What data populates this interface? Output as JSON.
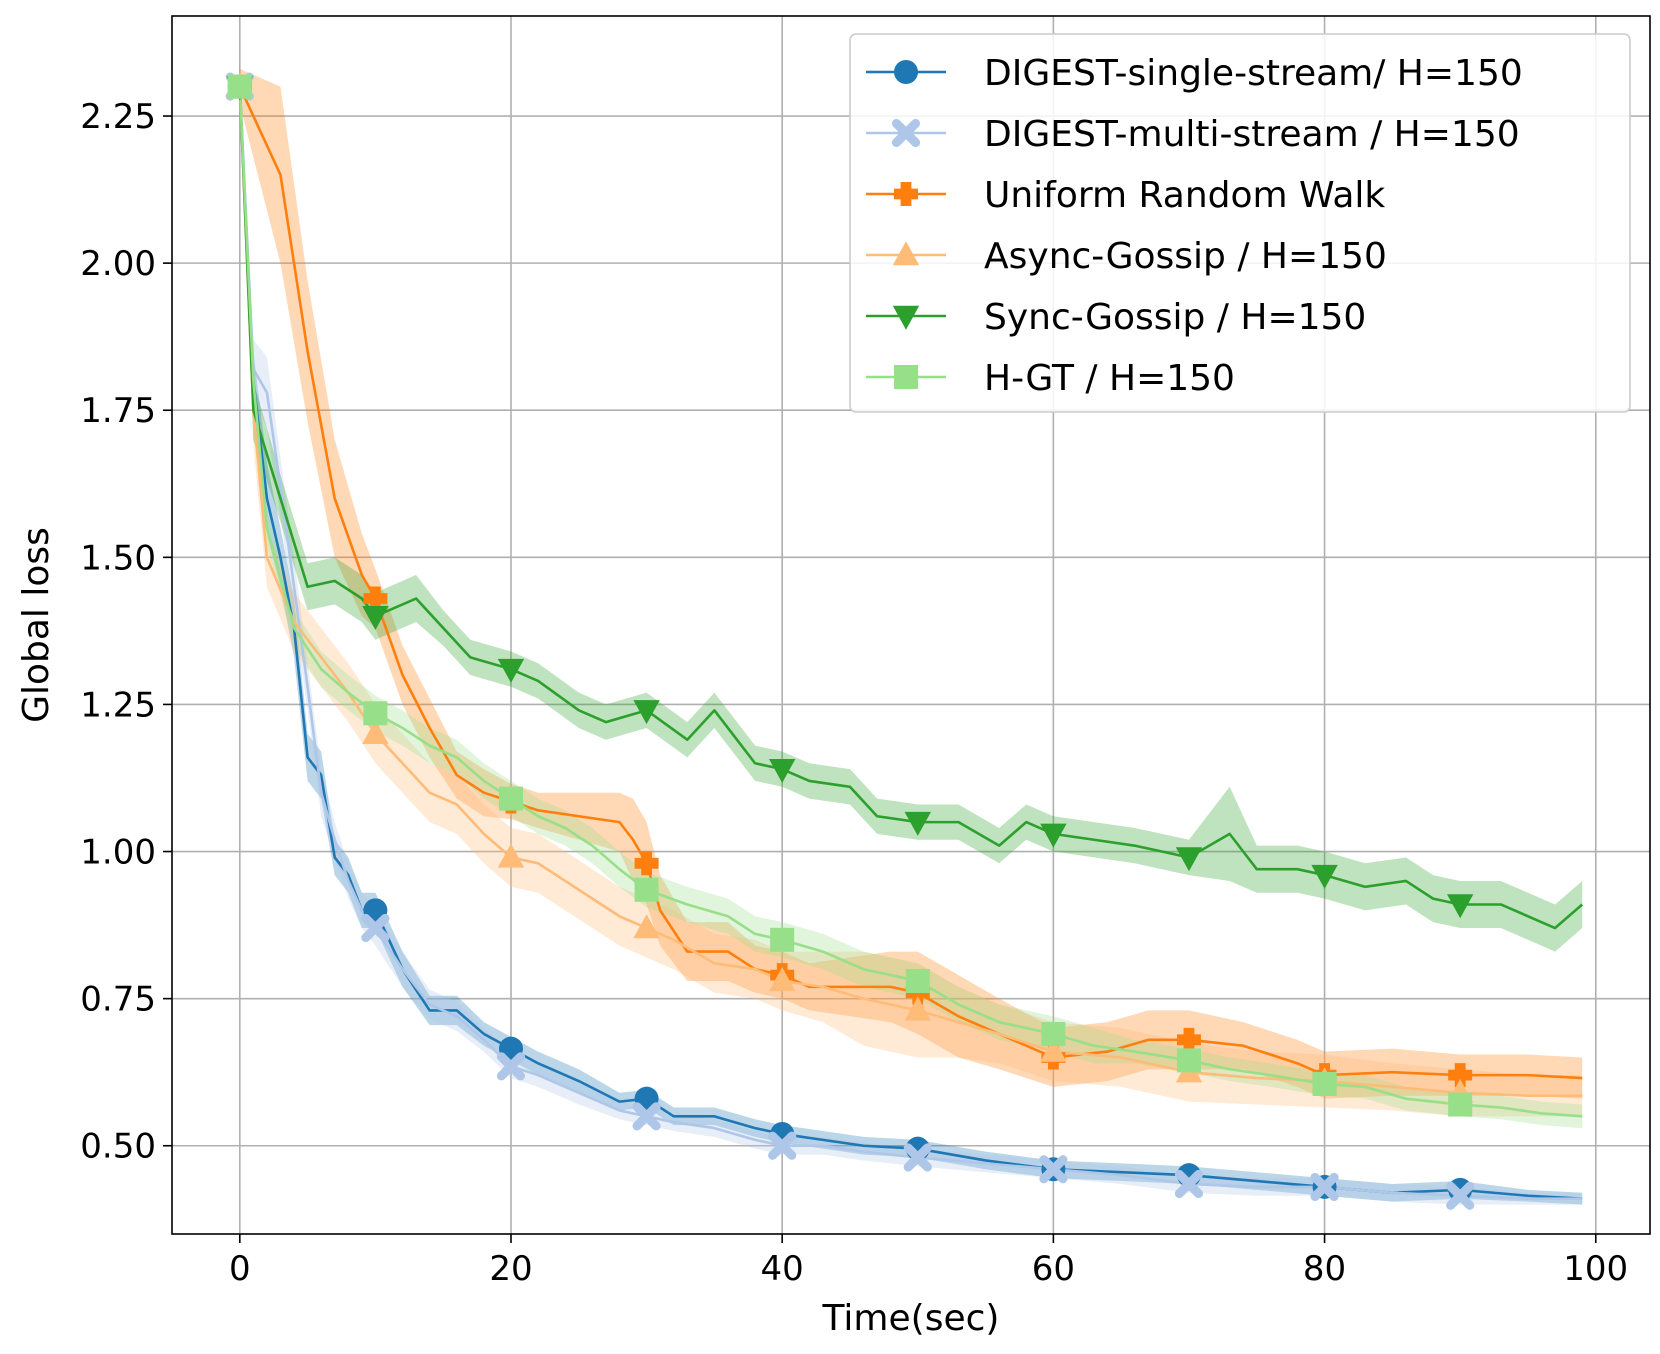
{
  "chart_data": {
    "type": "line",
    "xlabel": "Time(sec)",
    "ylabel": "Global loss",
    "xlim": [
      -5,
      104
    ],
    "ylim": [
      0.35,
      2.42
    ],
    "xticks": [
      0,
      20,
      40,
      60,
      80,
      100
    ],
    "yticks": [
      0.5,
      0.75,
      1.0,
      1.25,
      1.5,
      1.75,
      2.0,
      2.25
    ],
    "xtick_labels": [
      "0",
      "20",
      "40",
      "60",
      "80",
      "100"
    ],
    "ytick_labels": [
      "0.50",
      "0.75",
      "1.00",
      "1.25",
      "1.50",
      "1.75",
      "2.00",
      "2.25"
    ],
    "grid": true,
    "legend_position": "top-right",
    "shaded_band": "min-max band around each line",
    "series": [
      {
        "name": "DIGEST-single-stream/ H=150",
        "color": "#1f77b4",
        "marker": "circle",
        "x": [
          0,
          1,
          2,
          3,
          4,
          5,
          6,
          7,
          8,
          9,
          10,
          12,
          14,
          16,
          18,
          20,
          22,
          25,
          28,
          30,
          32,
          35,
          38,
          40,
          43,
          46,
          50,
          55,
          60,
          65,
          70,
          75,
          80,
          85,
          90,
          95,
          99
        ],
        "y": [
          2.3,
          1.8,
          1.6,
          1.5,
          1.38,
          1.16,
          1.13,
          0.99,
          0.96,
          0.9,
          0.9,
          0.8,
          0.73,
          0.73,
          0.69,
          0.665,
          0.64,
          0.61,
          0.575,
          0.58,
          0.55,
          0.55,
          0.53,
          0.52,
          0.51,
          0.5,
          0.495,
          0.475,
          0.46,
          0.455,
          0.45,
          0.44,
          0.43,
          0.42,
          0.425,
          0.415,
          0.41
        ],
        "band": [
          0.03,
          0.05,
          0.06,
          0.05,
          0.05,
          0.04,
          0.04,
          0.03,
          0.03,
          0.03,
          0.03,
          0.03,
          0.025,
          0.025,
          0.02,
          0.02,
          0.02,
          0.02,
          0.015,
          0.015,
          0.015,
          0.015,
          0.015,
          0.015,
          0.015,
          0.015,
          0.015,
          0.015,
          0.015,
          0.015,
          0.015,
          0.015,
          0.015,
          0.015,
          0.015,
          0.01,
          0.01
        ]
      },
      {
        "name": "DIGEST-multi-stream / H=150",
        "color": "#aec7e8",
        "marker": "x",
        "x": [
          0,
          1,
          2,
          3,
          4,
          5,
          6,
          7,
          8,
          9,
          10,
          12,
          14,
          16,
          18,
          20,
          22,
          25,
          28,
          30,
          32,
          35,
          38,
          40,
          43,
          46,
          50,
          55,
          60,
          65,
          70,
          75,
          80,
          85,
          90,
          95,
          99
        ],
        "y": [
          2.3,
          1.82,
          1.78,
          1.62,
          1.45,
          1.28,
          1.1,
          1.02,
          0.95,
          0.9,
          0.87,
          0.8,
          0.74,
          0.72,
          0.68,
          0.635,
          0.62,
          0.59,
          0.56,
          0.55,
          0.54,
          0.53,
          0.51,
          0.5,
          0.5,
          0.49,
          0.48,
          0.47,
          0.46,
          0.45,
          0.435,
          0.43,
          0.43,
          0.42,
          0.415,
          0.41,
          0.41
        ],
        "band": [
          0.03,
          0.05,
          0.06,
          0.05,
          0.05,
          0.04,
          0.04,
          0.03,
          0.03,
          0.03,
          0.03,
          0.03,
          0.025,
          0.025,
          0.02,
          0.02,
          0.02,
          0.02,
          0.015,
          0.015,
          0.015,
          0.015,
          0.015,
          0.015,
          0.015,
          0.015,
          0.015,
          0.015,
          0.015,
          0.015,
          0.015,
          0.015,
          0.015,
          0.015,
          0.015,
          0.01,
          0.01
        ]
      },
      {
        "name": "Uniform Random Walk",
        "color": "#ff7f0e",
        "marker": "plus",
        "x": [
          0,
          3,
          5,
          7,
          9,
          10,
          12,
          14,
          16,
          18,
          20,
          22,
          25,
          28,
          29,
          30,
          31,
          33,
          36,
          38,
          40,
          42,
          45,
          48,
          50,
          53,
          56,
          60,
          64,
          67,
          70,
          74,
          78,
          80,
          85,
          90,
          95,
          99
        ],
        "y": [
          2.3,
          2.15,
          1.85,
          1.6,
          1.47,
          1.43,
          1.3,
          1.21,
          1.13,
          1.1,
          1.085,
          1.07,
          1.06,
          1.05,
          1.02,
          0.98,
          0.9,
          0.83,
          0.83,
          0.8,
          0.79,
          0.77,
          0.77,
          0.77,
          0.76,
          0.72,
          0.69,
          0.65,
          0.66,
          0.68,
          0.68,
          0.67,
          0.64,
          0.62,
          0.625,
          0.62,
          0.62,
          0.615
        ],
        "band": [
          0.03,
          0.15,
          0.12,
          0.1,
          0.07,
          0.05,
          0.05,
          0.05,
          0.04,
          0.04,
          0.03,
          0.03,
          0.04,
          0.05,
          0.07,
          0.07,
          0.06,
          0.05,
          0.05,
          0.04,
          0.04,
          0.04,
          0.05,
          0.06,
          0.07,
          0.07,
          0.06,
          0.05,
          0.05,
          0.05,
          0.05,
          0.04,
          0.04,
          0.04,
          0.04,
          0.035,
          0.035,
          0.035
        ]
      },
      {
        "name": "Async-Gossip / H=150",
        "color": "#ffbb78",
        "marker": "triangle-up",
        "x": [
          0,
          1,
          2,
          4,
          6,
          8,
          10,
          12,
          14,
          16,
          18,
          20,
          22,
          24,
          26,
          28,
          30,
          32,
          35,
          38,
          40,
          43,
          46,
          50,
          53,
          56,
          60,
          65,
          70,
          75,
          80,
          85,
          90,
          95,
          99
        ],
        "y": [
          2.3,
          1.75,
          1.5,
          1.39,
          1.33,
          1.27,
          1.2,
          1.15,
          1.1,
          1.08,
          1.03,
          0.99,
          0.98,
          0.95,
          0.92,
          0.89,
          0.87,
          0.85,
          0.81,
          0.8,
          0.78,
          0.77,
          0.75,
          0.73,
          0.71,
          0.69,
          0.66,
          0.65,
          0.625,
          0.615,
          0.61,
          0.6,
          0.59,
          0.585,
          0.585
        ],
        "band": [
          0.03,
          0.06,
          0.05,
          0.05,
          0.05,
          0.05,
          0.05,
          0.05,
          0.05,
          0.05,
          0.05,
          0.05,
          0.05,
          0.05,
          0.05,
          0.05,
          0.05,
          0.05,
          0.05,
          0.05,
          0.05,
          0.06,
          0.08,
          0.08,
          0.06,
          0.05,
          0.05,
          0.05,
          0.05,
          0.045,
          0.045,
          0.04,
          0.04,
          0.035,
          0.035
        ]
      },
      {
        "name": "Sync-Gossip / H=150",
        "color": "#2ca02c",
        "marker": "triangle-down",
        "x": [
          0,
          1,
          3,
          5,
          7,
          9,
          10,
          13,
          15,
          17,
          20,
          22,
          25,
          27,
          30,
          33,
          35,
          38,
          40,
          42,
          45,
          47,
          50,
          53,
          56,
          58,
          60,
          63,
          66,
          68,
          70,
          73,
          75,
          78,
          80,
          83,
          86,
          88,
          90,
          93,
          96,
          97,
          99
        ],
        "y": [
          2.3,
          1.75,
          1.6,
          1.45,
          1.46,
          1.43,
          1.4,
          1.43,
          1.38,
          1.33,
          1.31,
          1.29,
          1.24,
          1.22,
          1.24,
          1.19,
          1.24,
          1.15,
          1.14,
          1.12,
          1.11,
          1.06,
          1.05,
          1.05,
          1.01,
          1.05,
          1.03,
          1.02,
          1.01,
          1.0,
          0.99,
          1.03,
          0.97,
          0.97,
          0.96,
          0.94,
          0.95,
          0.92,
          0.91,
          0.91,
          0.88,
          0.87,
          0.91
        ],
        "band": [
          0.03,
          0.05,
          0.04,
          0.04,
          0.04,
          0.04,
          0.04,
          0.04,
          0.03,
          0.03,
          0.03,
          0.03,
          0.03,
          0.03,
          0.03,
          0.03,
          0.03,
          0.03,
          0.03,
          0.03,
          0.03,
          0.03,
          0.03,
          0.03,
          0.03,
          0.03,
          0.03,
          0.03,
          0.03,
          0.03,
          0.03,
          0.08,
          0.04,
          0.04,
          0.04,
          0.04,
          0.04,
          0.04,
          0.04,
          0.04,
          0.04,
          0.04,
          0.04
        ]
      },
      {
        "name": "H-GT / H=150",
        "color": "#98df8a",
        "marker": "square",
        "x": [
          0,
          1,
          2,
          4,
          6,
          8,
          10,
          12,
          14,
          16,
          18,
          20,
          22,
          24,
          26,
          28,
          30,
          33,
          36,
          38,
          40,
          43,
          46,
          50,
          53,
          56,
          60,
          63,
          66,
          70,
          73,
          76,
          80,
          83,
          86,
          90,
          93,
          96,
          99
        ],
        "y": [
          2.3,
          1.8,
          1.55,
          1.38,
          1.31,
          1.27,
          1.235,
          1.21,
          1.18,
          1.16,
          1.12,
          1.09,
          1.06,
          1.04,
          1.01,
          0.97,
          0.935,
          0.91,
          0.89,
          0.86,
          0.85,
          0.83,
          0.8,
          0.78,
          0.74,
          0.71,
          0.69,
          0.67,
          0.66,
          0.645,
          0.63,
          0.62,
          0.605,
          0.6,
          0.58,
          0.57,
          0.565,
          0.555,
          0.55
        ],
        "band": [
          0.03,
          0.04,
          0.03,
          0.03,
          0.03,
          0.03,
          0.03,
          0.03,
          0.03,
          0.03,
          0.03,
          0.03,
          0.03,
          0.03,
          0.03,
          0.03,
          0.03,
          0.03,
          0.03,
          0.03,
          0.03,
          0.03,
          0.03,
          0.03,
          0.03,
          0.03,
          0.03,
          0.03,
          0.02,
          0.02,
          0.02,
          0.02,
          0.02,
          0.02,
          0.02,
          0.02,
          0.02,
          0.02,
          0.02
        ]
      }
    ]
  }
}
